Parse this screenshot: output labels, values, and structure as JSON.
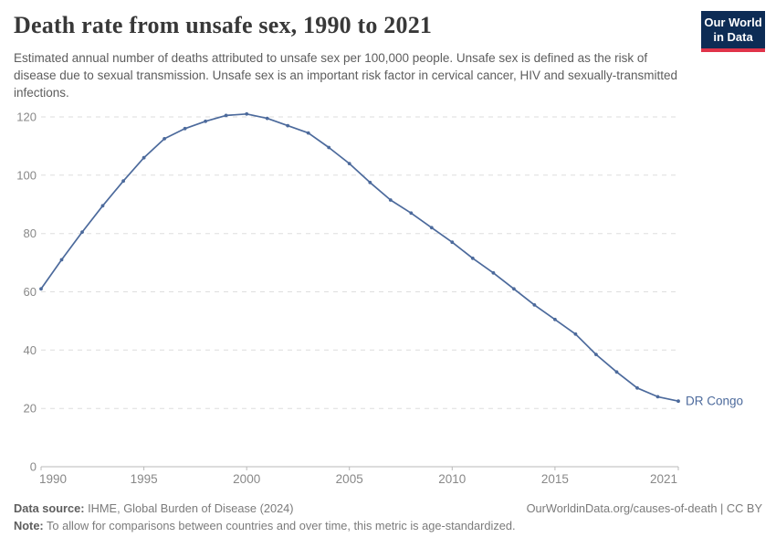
{
  "header": {
    "title": "Death rate from unsafe sex, 1990 to 2021",
    "subtitle": "Estimated annual number of deaths attributed to unsafe sex per 100,000 people. Unsafe sex is defined as the risk of disease due to sexual transmission. Unsafe sex is an important risk factor in cervical cancer, HIV and sexually-transmitted infections.",
    "logo": {
      "line1": "Our World",
      "line2": "in Data"
    }
  },
  "chart_data": {
    "type": "line",
    "title": "Death rate from unsafe sex, 1990 to 2021",
    "xlabel": "",
    "ylabel": "",
    "xlim": [
      1990,
      2021
    ],
    "ylim": [
      0,
      120
    ],
    "x_ticks": [
      1990,
      1995,
      2000,
      2005,
      2010,
      2015,
      2021
    ],
    "y_ticks": [
      0,
      20,
      40,
      60,
      80,
      100,
      120
    ],
    "grid": "horizontal-dashed",
    "legend_position": "end-of-line-label",
    "series": [
      {
        "name": "DR Congo",
        "color": "#4c6a9c",
        "x": [
          1990,
          1991,
          1992,
          1993,
          1994,
          1995,
          1996,
          1997,
          1998,
          1999,
          2000,
          2001,
          2002,
          2003,
          2004,
          2005,
          2006,
          2007,
          2008,
          2009,
          2010,
          2011,
          2012,
          2013,
          2014,
          2015,
          2016,
          2017,
          2018,
          2019,
          2020,
          2021
        ],
        "values": [
          61,
          71,
          80.5,
          89.5,
          98,
          106,
          112.5,
          116,
          118.5,
          120.5,
          121,
          119.5,
          117,
          114.5,
          109.5,
          104,
          97.5,
          91.5,
          87,
          82,
          77,
          71.5,
          66.5,
          61,
          55.5,
          50.5,
          45.5,
          38.5,
          32.5,
          27,
          24,
          22.5
        ]
      }
    ]
  },
  "footer": {
    "source_label": "Data source:",
    "source_text": " IHME, Global Burden of Disease (2024)",
    "rights_text": "OurWorldinData.org/causes-of-death | CC BY",
    "note_label": "Note:",
    "note_text": " To allow for comparisons between countries and over time, this metric is age-standardized."
  },
  "colors": {
    "series_line": "#4c6a9c",
    "gridline": "#dedede",
    "axis": "#b9b9b9",
    "tick_label": "#888888",
    "title_text": "#383838",
    "subtitle_text": "#5d5d5d",
    "footer_text": "#7b7b7b",
    "logo_bg": "#0d2c55",
    "logo_stripe": "#e0344a"
  }
}
